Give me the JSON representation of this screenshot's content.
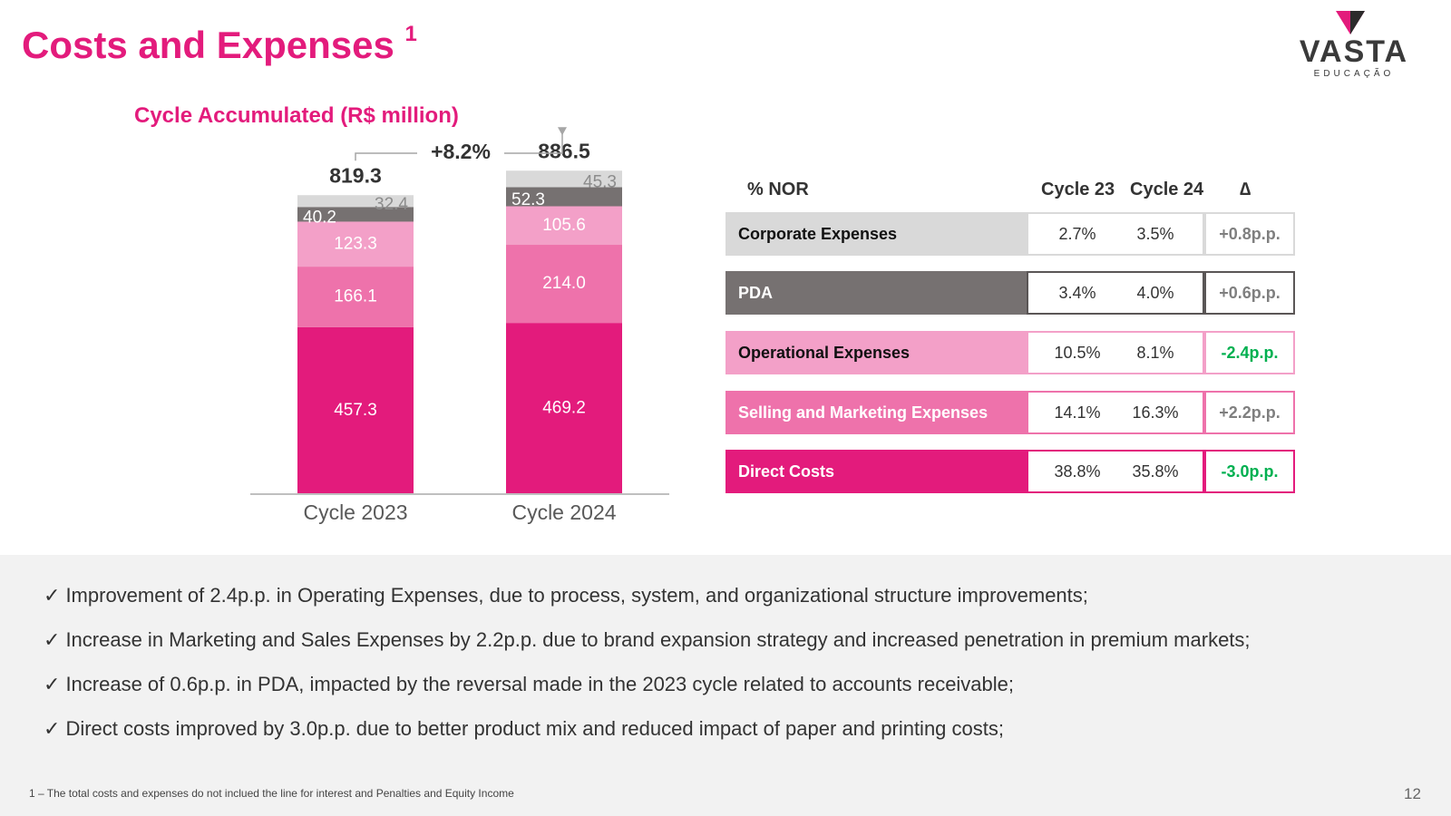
{
  "header": {
    "title": "Costs and Expenses",
    "title_sup": "1"
  },
  "logo": {
    "word": "VASTA",
    "sub": "EDUCAÇÃO"
  },
  "colors": {
    "accent": "#e31b7c",
    "direct": "#e31b7c",
    "selling": "#ee72ab",
    "operational": "#f3a0c8",
    "pda": "#767171",
    "corporate": "#d9d9d9",
    "positive": "#00b050",
    "neutral": "#7f7f7f"
  },
  "chart_subtitle": "Cycle Accumulated (R$ million)",
  "chart_data": {
    "type": "bar",
    "stacked": true,
    "title": "Cycle Accumulated (R$ million)",
    "categories": [
      "Cycle 2023",
      "Cycle 2024"
    ],
    "series": [
      {
        "name": "Direct Costs",
        "values": [
          457.3,
          469.2
        ]
      },
      {
        "name": "Selling and Marketing Expenses",
        "values": [
          166.1,
          214.0
        ]
      },
      {
        "name": "Operational Expenses",
        "values": [
          123.3,
          105.6
        ]
      },
      {
        "name": "PDA",
        "values": [
          40.2,
          52.3
        ]
      },
      {
        "name": "Corporate Expenses",
        "values": [
          32.4,
          45.3
        ]
      }
    ],
    "totals": [
      819.3,
      886.5
    ],
    "growth_label": "+8.2%",
    "ylim": [
      0,
      1000
    ]
  },
  "table": {
    "header_metric": "% NOR",
    "header_c23": "Cycle 23",
    "header_c24": "Cycle 24",
    "header_delta": "∆",
    "rows": [
      {
        "label": "Corporate Expenses",
        "c23": "2.7%",
        "c24": "3.5%",
        "delta": "+0.8p.p."
      },
      {
        "label": "PDA",
        "c23": "3.4%",
        "c24": "4.0%",
        "delta": "+0.6p.p."
      },
      {
        "label": "Operational Expenses",
        "c23": "10.5%",
        "c24": "8.1%",
        "delta": "-2.4p.p."
      },
      {
        "label": "Selling and Marketing Expenses",
        "c23": "14.1%",
        "c24": "16.3%",
        "delta": "+2.2p.p."
      },
      {
        "label": "Direct Costs",
        "c23": "38.8%",
        "c24": "35.8%",
        "delta": "-3.0p.p."
      }
    ]
  },
  "bullets": [
    "Improvement of 2.4p.p. in Operating Expenses, due to process, system, and organizational structure improvements;",
    "Increase in Marketing and Sales Expenses by 2.2p.p. due to brand expansion strategy and increased penetration in premium markets;",
    "Increase of 0.6p.p. in PDA, impacted by the reversal made in the 2023 cycle related to accounts receivable;",
    "Direct costs improved by 3.0p.p. due to better product mix and reduced impact of paper and printing costs;"
  ],
  "check_glyph": "✓",
  "footnote": "1 – The total costs and expenses do not inclued the line for interest and Penalties and Equity Income",
  "page_number": "12"
}
